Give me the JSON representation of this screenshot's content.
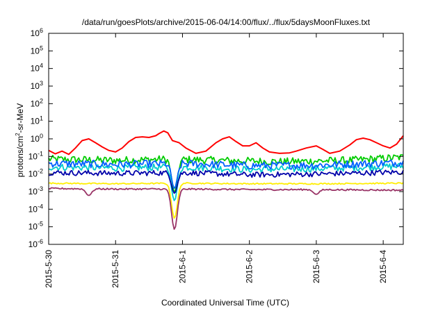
{
  "chart_data": {
    "type": "line",
    "title": "/data/run/goesPlots/archive/2015-06-04/14:00/flux/../flux/5daysMoonFluxes.txt",
    "xlabel": "Coordinated Universal Time (UTC)",
    "ylabel_parts": {
      "base": "protons/cm",
      "exp": "2",
      "rest": "-sr-MeV"
    },
    "yscale": "log",
    "ylim_exp": [
      -6,
      6
    ],
    "yticks": [
      {
        "base": "10",
        "exp": "-6"
      },
      {
        "base": "10",
        "exp": "-5"
      },
      {
        "base": "10",
        "exp": "-4"
      },
      {
        "base": "10",
        "exp": "-3"
      },
      {
        "base": "10",
        "exp": "-2"
      },
      {
        "base": "10",
        "exp": "-1"
      },
      {
        "base": "10",
        "exp": "0"
      },
      {
        "base": "10",
        "exp": "1"
      },
      {
        "base": "10",
        "exp": "2"
      },
      {
        "base": "10",
        "exp": "3"
      },
      {
        "base": "10",
        "exp": "4"
      },
      {
        "base": "10",
        "exp": "5"
      },
      {
        "base": "10",
        "exp": "6"
      }
    ],
    "x_day_range": [
      0,
      5.3
    ],
    "xticks": [
      {
        "label": "2015-5-30",
        "day": 0
      },
      {
        "label": "2015-5-31",
        "day": 1
      },
      {
        "label": "2015-6-1",
        "day": 2
      },
      {
        "label": "2015-6-2",
        "day": 3
      },
      {
        "label": "2015-6-3",
        "day": 4
      },
      {
        "label": "2015-6-4",
        "day": 5
      }
    ],
    "grid": false,
    "legend": "none",
    "series": [
      {
        "color": "#ff0000",
        "points": [
          [
            0,
            0.22
          ],
          [
            0.1,
            0.14
          ],
          [
            0.2,
            0.2
          ],
          [
            0.3,
            0.13
          ],
          [
            0.4,
            0.3
          ],
          [
            0.5,
            0.8
          ],
          [
            0.6,
            1.0
          ],
          [
            0.7,
            0.6
          ],
          [
            0.8,
            0.35
          ],
          [
            0.9,
            0.22
          ],
          [
            1.0,
            0.18
          ],
          [
            1.1,
            0.3
          ],
          [
            1.2,
            0.7
          ],
          [
            1.3,
            1.2
          ],
          [
            1.4,
            1.3
          ],
          [
            1.5,
            1.2
          ],
          [
            1.6,
            1.5
          ],
          [
            1.65,
            2.0
          ],
          [
            1.72,
            2.8
          ],
          [
            1.78,
            2.2
          ],
          [
            1.85,
            0.8
          ],
          [
            1.95,
            0.6
          ],
          [
            2.05,
            0.3
          ],
          [
            2.2,
            0.15
          ],
          [
            2.35,
            0.2
          ],
          [
            2.5,
            0.6
          ],
          [
            2.6,
            1.0
          ],
          [
            2.7,
            1.3
          ],
          [
            2.8,
            0.7
          ],
          [
            2.9,
            0.4
          ],
          [
            3.0,
            0.4
          ],
          [
            3.1,
            0.6
          ],
          [
            3.2,
            0.3
          ],
          [
            3.3,
            0.18
          ],
          [
            3.45,
            0.15
          ],
          [
            3.6,
            0.16
          ],
          [
            3.7,
            0.2
          ],
          [
            3.85,
            0.3
          ],
          [
            4.0,
            0.4
          ],
          [
            4.1,
            0.25
          ],
          [
            4.2,
            0.15
          ],
          [
            4.35,
            0.2
          ],
          [
            4.5,
            0.45
          ],
          [
            4.6,
            0.9
          ],
          [
            4.7,
            1.1
          ],
          [
            4.8,
            0.9
          ],
          [
            4.9,
            0.6
          ],
          [
            5.0,
            0.4
          ],
          [
            5.1,
            0.3
          ],
          [
            5.2,
            0.5
          ],
          [
            5.3,
            1.5
          ]
        ]
      },
      {
        "color": "#00cc00",
        "base": [
          [
            0,
            0.07
          ],
          [
            1,
            0.06
          ],
          [
            1.8,
            0.07
          ],
          [
            2.5,
            0.06
          ],
          [
            3.5,
            0.05
          ],
          [
            4.5,
            0.06
          ],
          [
            5.3,
            0.09
          ]
        ],
        "noise": 0.5,
        "dips": [
          [
            1.88,
            0.0009
          ]
        ]
      },
      {
        "color": "#00cccc",
        "base": [
          [
            0,
            0.025
          ],
          [
            1,
            0.022
          ],
          [
            2,
            0.025
          ],
          [
            3,
            0.018
          ],
          [
            4,
            0.02
          ],
          [
            5.3,
            0.028
          ]
        ],
        "noise": 0.45,
        "dips": [
          [
            1.88,
            0.0003
          ]
        ]
      },
      {
        "color": "#0060ff",
        "base": [
          [
            0,
            0.04
          ],
          [
            1,
            0.035
          ],
          [
            2,
            0.04
          ],
          [
            3,
            0.03
          ],
          [
            4,
            0.032
          ],
          [
            5.3,
            0.045
          ]
        ],
        "noise": 0.5,
        "dips": [
          [
            1.88,
            0.0015
          ]
        ]
      },
      {
        "color": "#0000aa",
        "base": [
          [
            0,
            0.012
          ],
          [
            1,
            0.011
          ],
          [
            2,
            0.012
          ],
          [
            3,
            0.009
          ],
          [
            4,
            0.01
          ],
          [
            5.3,
            0.013
          ]
        ],
        "noise": 0.35,
        "dips": [
          [
            1.88,
            0.0008
          ]
        ]
      },
      {
        "color": "#ffee00",
        "base": [
          [
            0,
            0.003
          ],
          [
            1,
            0.0028
          ],
          [
            2,
            0.003
          ],
          [
            3,
            0.0028
          ],
          [
            4,
            0.0028
          ],
          [
            5.3,
            0.003
          ]
        ],
        "noise": 0.08,
        "dips": [
          [
            1.88,
            3e-05
          ]
        ]
      },
      {
        "color": "#993366",
        "base": [
          [
            0,
            0.0015
          ],
          [
            1,
            0.0014
          ],
          [
            2,
            0.0014
          ],
          [
            3,
            0.0013
          ],
          [
            4,
            0.0013
          ],
          [
            5.3,
            0.0012
          ]
        ],
        "noise": 0.1,
        "dips": [
          [
            0.6,
            0.0006
          ],
          [
            1.88,
            7e-06
          ],
          [
            4.0,
            0.0007
          ]
        ]
      }
    ]
  }
}
